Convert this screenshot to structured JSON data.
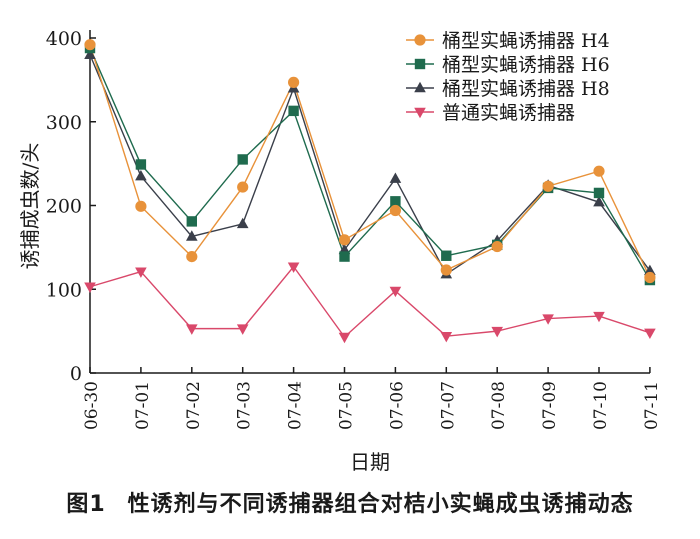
{
  "chart_data": {
    "type": "line",
    "title": "",
    "xlabel": "日期",
    "ylabel": "诱捕成虫数/头",
    "ylim": [
      0,
      400
    ],
    "yticks": [
      0,
      100,
      200,
      300,
      400
    ],
    "categories": [
      "06-30",
      "07-01",
      "07-02",
      "07-03",
      "07-04",
      "07-05",
      "07-06",
      "07-07",
      "07-08",
      "07-09",
      "07-10",
      "07-11"
    ],
    "legend_position": "top-right",
    "series": [
      {
        "name": "桶型实蝇诱捕器 H4",
        "color": "#E8923A",
        "marker": "circle",
        "values": [
          392,
          199,
          139,
          222,
          347,
          159,
          194,
          123,
          151,
          223,
          241,
          114
        ]
      },
      {
        "name": "桶型实蝇诱捕器 H6",
        "color": "#1F6B4E",
        "marker": "square",
        "values": [
          388,
          249,
          181,
          255,
          313,
          139,
          205,
          140,
          153,
          221,
          215,
          111
        ]
      },
      {
        "name": "桶型实蝇诱捕器 H8",
        "color": "#3A3F4A",
        "marker": "triangle-up",
        "values": [
          380,
          235,
          163,
          178,
          340,
          147,
          232,
          118,
          158,
          224,
          204,
          122
        ]
      },
      {
        "name": "普通实蝇诱捕器",
        "color": "#D9486A",
        "marker": "triangle-down",
        "values": [
          103,
          121,
          53,
          53,
          127,
          43,
          98,
          44,
          50,
          65,
          68,
          48
        ]
      }
    ]
  },
  "caption": {
    "number": "图1",
    "text": "性诱剂与不同诱捕器组合对桔小实蝇成虫诱捕动态"
  }
}
